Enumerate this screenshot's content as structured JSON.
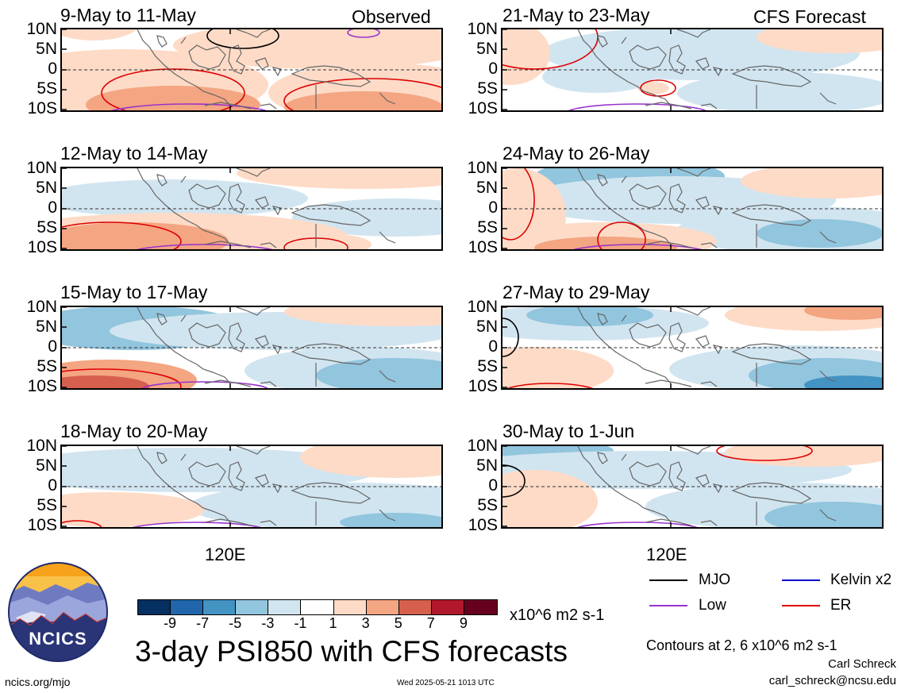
{
  "panels": [
    {
      "title": "9-May to 11-May",
      "tag": "Observed",
      "pattern": "a"
    },
    {
      "title": "12-May to 14-May",
      "tag": "",
      "pattern": "b"
    },
    {
      "title": "15-May to 17-May",
      "tag": "",
      "pattern": "c"
    },
    {
      "title": "18-May to 20-May",
      "tag": "",
      "pattern": "d"
    },
    {
      "title": "21-May to 23-May",
      "tag": "CFS Forecast",
      "pattern": "e"
    },
    {
      "title": "24-May to 26-May",
      "tag": "",
      "pattern": "f"
    },
    {
      "title": "27-May to 29-May",
      "tag": "",
      "pattern": "g"
    },
    {
      "title": "30-May to 1-Jun",
      "tag": "",
      "pattern": "h"
    }
  ],
  "lat_labels": [
    "10N",
    "5N",
    "0",
    "5S",
    "10S"
  ],
  "lon_label": "120E",
  "colorbar": {
    "colors": [
      "#053061",
      "#2166ac",
      "#4393c3",
      "#92c5de",
      "#d1e5f0",
      "#ffffff",
      "#fddbc7",
      "#f4a582",
      "#d6604d",
      "#b2182b",
      "#67001f"
    ],
    "ticks": [
      "-9",
      "-7",
      "-5",
      "-3",
      "-1",
      "1",
      "3",
      "5",
      "7",
      "9"
    ],
    "units": "x10^6 m2 s-1"
  },
  "legend": [
    {
      "label": "MJO",
      "color": "#000000"
    },
    {
      "label": "Kelvin x2",
      "color": "#0000cc"
    },
    {
      "label": "Low",
      "color": "#9933cc"
    },
    {
      "label": "ER",
      "color": "#dd0000"
    }
  ],
  "main_title": "3-day PSI850 with CFS forecasts",
  "contours_note": "Contours at 2, 6 x10^6 m2 s-1",
  "author": "Carl Schreck",
  "email": "carl_schreck@ncsu.edu",
  "site": "ncics.org/mjo",
  "timestamp": "Wed 2025-05-21 1013 UTC",
  "logo_text": "NCICS"
}
